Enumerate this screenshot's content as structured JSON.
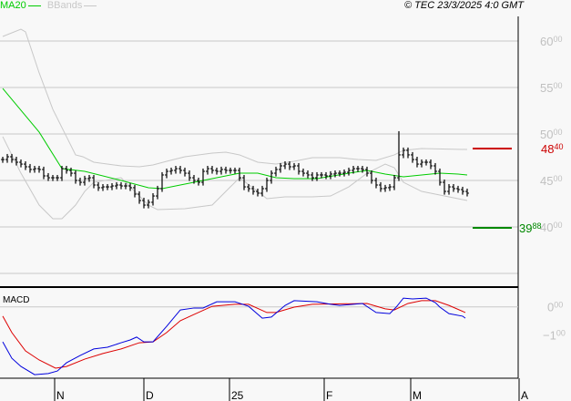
{
  "legend": {
    "ma_label": "MA20",
    "bbands_label": "BBands"
  },
  "copyright": "© TEC 23/3/2025 4:0 GMT",
  "colors": {
    "ma": "#00cc00",
    "bbands": "#c8c8c8",
    "bars": "#000000",
    "macd": "#0000dd",
    "signal": "#dd0000",
    "resistance": "#cc0000",
    "support": "#008800",
    "grid": "#c8c8c8",
    "axis_label": "#c0c0c0"
  },
  "chart_data": [
    {
      "type": "ohlc",
      "panel": "price",
      "y_ticks": [
        "60.00",
        "55.00",
        "50.00",
        "45.00",
        "40.00"
      ],
      "ylim": [
        33.5,
        62.6
      ],
      "grid": true,
      "x_tick_labels": [
        {
          "label": "N",
          "bar": 11.6
        },
        {
          "label": "D",
          "bar": 31.2
        },
        {
          "label": "25",
          "bar": 50
        },
        {
          "label": "F",
          "bar": 70.8
        },
        {
          "label": "M",
          "bar": 89.8
        },
        {
          "label": "A",
          "bar": 113.6
        }
      ],
      "closes": [
        47.25,
        47.55,
        47.25,
        46.96,
        46.76,
        46.47,
        46.18,
        46.27,
        46.18,
        45.49,
        45.29,
        45.29,
        45.29,
        46.27,
        46.08,
        45.78,
        45.0,
        44.8,
        45.2,
        45.29,
        44.51,
        44.22,
        44.31,
        44.31,
        44.41,
        44.51,
        44.41,
        44.41,
        44.22,
        43.53,
        42.84,
        42.35,
        42.65,
        43.33,
        44.12,
        45.59,
        45.98,
        46.08,
        46.27,
        46.08,
        45.78,
        45.29,
        45.0,
        44.8,
        45.98,
        46.27,
        46.08,
        45.98,
        46.18,
        46.08,
        46.08,
        46.08,
        45.29,
        44.31,
        44.12,
        43.82,
        43.63,
        44.12,
        45.0,
        45.78,
        46.18,
        46.57,
        46.76,
        46.47,
        46.57,
        45.98,
        45.78,
        45.59,
        45.29,
        45.59,
        45.59,
        45.49,
        45.69,
        45.78,
        45.78,
        45.88,
        46.08,
        46.27,
        46.27,
        46.18,
        45.78,
        45.0,
        44.51,
        44.12,
        44.22,
        44.31,
        45.29,
        47.75,
        48.24,
        47.75,
        47.25,
        46.76,
        46.96,
        46.96,
        46.57,
        45.98,
        44.8,
        43.82,
        44.31,
        44.12,
        44.02,
        43.82,
        43.63
      ],
      "high_overrides": {
        "87": 50.3
      },
      "ma20": [
        [
          0,
          54.9
        ],
        [
          8,
          50.2
        ],
        [
          13,
          46.27
        ],
        [
          18,
          45.98
        ],
        [
          26,
          45.0
        ],
        [
          32,
          44.22
        ],
        [
          35,
          44.12
        ],
        [
          40,
          44.61
        ],
        [
          46,
          45.2
        ],
        [
          52,
          45.78
        ],
        [
          56,
          45.78
        ],
        [
          60,
          45.29
        ],
        [
          64,
          45.2
        ],
        [
          69,
          45.2
        ],
        [
          76,
          45.78
        ],
        [
          80,
          46.08
        ],
        [
          84,
          45.69
        ],
        [
          88,
          45.39
        ],
        [
          92,
          45.59
        ],
        [
          96,
          45.78
        ],
        [
          100,
          45.69
        ],
        [
          102,
          45.59
        ]
      ],
      "bband_upper": [
        [
          0,
          60.49
        ],
        [
          4,
          61.27
        ],
        [
          5,
          60.98
        ],
        [
          8,
          56.57
        ],
        [
          11,
          52.65
        ],
        [
          14,
          49.71
        ],
        [
          16,
          47.75
        ],
        [
          17.6,
          47.55
        ],
        [
          20,
          46.96
        ],
        [
          26,
          46.57
        ],
        [
          30,
          46.47
        ],
        [
          33,
          46.67
        ],
        [
          36,
          47.06
        ],
        [
          40,
          47.55
        ],
        [
          46,
          47.94
        ],
        [
          49,
          48.04
        ],
        [
          52,
          47.75
        ],
        [
          56,
          46.96
        ],
        [
          60,
          46.76
        ],
        [
          64,
          47.06
        ],
        [
          68,
          47.45
        ],
        [
          74,
          47.45
        ],
        [
          78,
          47.25
        ],
        [
          82,
          47.16
        ],
        [
          86,
          47.75
        ],
        [
          88,
          48.24
        ],
        [
          92,
          48.43
        ],
        [
          102,
          48.33
        ]
      ],
      "bband_lower": [
        [
          0,
          49.71
        ],
        [
          4,
          45.78
        ],
        [
          8,
          42.35
        ],
        [
          11,
          40.88
        ],
        [
          13,
          40.88
        ],
        [
          16,
          42.35
        ],
        [
          18,
          43.82
        ],
        [
          20,
          44.8
        ],
        [
          26,
          45.29
        ],
        [
          32,
          42.35
        ],
        [
          34,
          41.86
        ],
        [
          40,
          41.96
        ],
        [
          46,
          42.35
        ],
        [
          50,
          44.31
        ],
        [
          52,
          45.29
        ],
        [
          56,
          43.82
        ],
        [
          58,
          43.04
        ],
        [
          62,
          43.24
        ],
        [
          68,
          43.24
        ],
        [
          72,
          43.33
        ],
        [
          76,
          44.31
        ],
        [
          80,
          45.78
        ],
        [
          84,
          46.76
        ],
        [
          86,
          46.37
        ],
        [
          88,
          44.8
        ],
        [
          92,
          43.82
        ],
        [
          100,
          43.04
        ],
        [
          102,
          42.84
        ]
      ],
      "levels": [
        {
          "value": 48.4,
          "label": "48.40",
          "kind": "resistance"
        },
        {
          "value": 39.88,
          "label": "39.88",
          "kind": "support"
        }
      ]
    },
    {
      "type": "line",
      "panel": "macd",
      "title": "MACD",
      "y_ticks": [
        "0.00",
        "-1.00"
      ],
      "ylim": [
        -2.5,
        0.6
      ],
      "macd": [
        [
          0,
          -1.24
        ],
        [
          2,
          -1.82
        ],
        [
          4,
          -2.11
        ],
        [
          7,
          -2.4
        ],
        [
          10,
          -2.36
        ],
        [
          12,
          -2.27
        ],
        [
          14,
          -1.98
        ],
        [
          17,
          -1.72
        ],
        [
          20,
          -1.49
        ],
        [
          23,
          -1.43
        ],
        [
          26,
          -1.27
        ],
        [
          28,
          -1.17
        ],
        [
          29.4,
          -1.07
        ],
        [
          31,
          -1.24
        ],
        [
          33,
          -1.24
        ],
        [
          36,
          -0.69
        ],
        [
          39,
          -0.11
        ],
        [
          42,
          -0.04
        ],
        [
          44,
          -0.04
        ],
        [
          47,
          0.18
        ],
        [
          51,
          0.18
        ],
        [
          54,
          0.02
        ],
        [
          57,
          -0.4
        ],
        [
          59,
          -0.36
        ],
        [
          62,
          0.05
        ],
        [
          64,
          0.22
        ],
        [
          69,
          0.18
        ],
        [
          72,
          0.09
        ],
        [
          74,
          0.05
        ],
        [
          79,
          0.12
        ],
        [
          82,
          -0.2
        ],
        [
          85,
          -0.24
        ],
        [
          86.4,
          -0.01
        ],
        [
          88,
          0.31
        ],
        [
          90,
          0.28
        ],
        [
          93,
          0.31
        ],
        [
          95,
          0.15
        ],
        [
          96,
          -0.01
        ],
        [
          98,
          -0.24
        ],
        [
          101,
          -0.33
        ],
        [
          101.6,
          -0.4
        ]
      ],
      "signal": [
        [
          0,
          -0.33
        ],
        [
          2,
          -0.91
        ],
        [
          5,
          -1.56
        ],
        [
          8,
          -1.88
        ],
        [
          11.6,
          -2.17
        ],
        [
          14,
          -2.11
        ],
        [
          18,
          -1.85
        ],
        [
          22,
          -1.65
        ],
        [
          26,
          -1.49
        ],
        [
          30,
          -1.27
        ],
        [
          33,
          -1.24
        ],
        [
          36,
          -0.91
        ],
        [
          39,
          -0.49
        ],
        [
          42,
          -0.27
        ],
        [
          46,
          0.02
        ],
        [
          51,
          0.09
        ],
        [
          54,
          0.09
        ],
        [
          58,
          -0.2
        ],
        [
          60,
          -0.2
        ],
        [
          64,
          -0.01
        ],
        [
          68,
          0.09
        ],
        [
          80,
          0.12
        ],
        [
          84,
          -0.07
        ],
        [
          86,
          -0.11
        ],
        [
          89,
          0.12
        ],
        [
          92,
          0.22
        ],
        [
          95,
          0.22
        ],
        [
          98,
          0.05
        ],
        [
          101.6,
          -0.2
        ]
      ]
    }
  ]
}
